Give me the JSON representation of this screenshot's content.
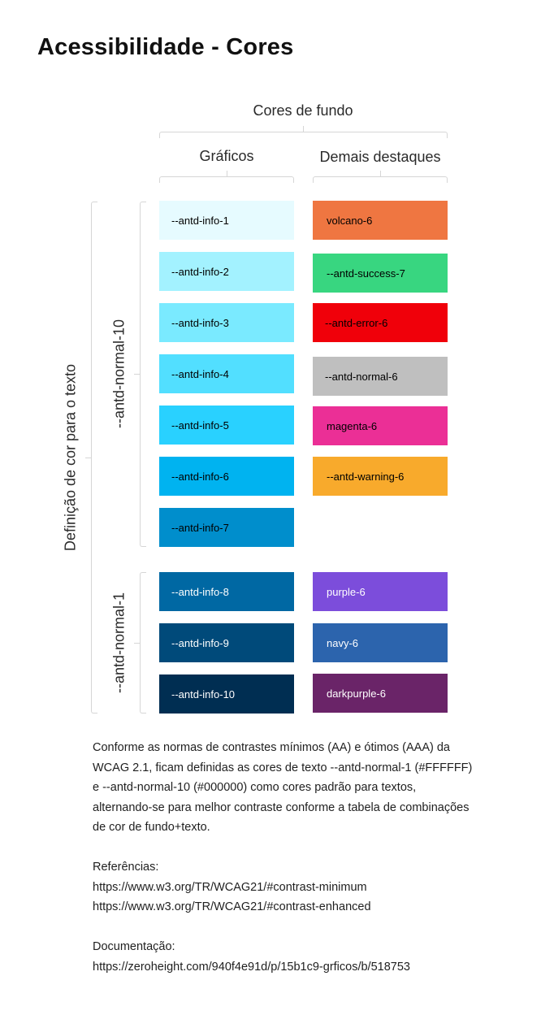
{
  "page_title": "Acessibilidade - Cores",
  "headers": {
    "background": "Cores de fundo",
    "charts": "Gráficos",
    "highlights": "Demais destaques",
    "text_color": "Definição de cor para o texto",
    "dark_text": "--antd-normal-10",
    "light_text": "--antd-normal-1"
  },
  "swatches_charts": [
    {
      "label": "--antd-info-1",
      "bg": "#e6fbff",
      "fg": "#000000"
    },
    {
      "label": "--antd-info-2",
      "bg": "#a3f2ff",
      "fg": "#000000"
    },
    {
      "label": "--antd-info-3",
      "bg": "#7aeaff",
      "fg": "#000000"
    },
    {
      "label": "--antd-info-4",
      "bg": "#52dfff",
      "fg": "#000000"
    },
    {
      "label": "--antd-info-5",
      "bg": "#29d1ff",
      "fg": "#000000"
    },
    {
      "label": "--antd-info-6",
      "bg": "#00b3f0",
      "fg": "#000000"
    },
    {
      "label": "--antd-info-7",
      "bg": "#008ecc",
      "fg": "#000000"
    },
    {
      "label": "--antd-info-8",
      "bg": "#0068a3",
      "fg": "#ffffff"
    },
    {
      "label": "--antd-info-9",
      "bg": "#004a7a",
      "fg": "#ffffff"
    },
    {
      "label": "--antd-info-10",
      "bg": "#002e52",
      "fg": "#ffffff"
    }
  ],
  "swatches_highlights": [
    {
      "label": "volcano-6",
      "bg": "#ef7641",
      "fg": "#000000"
    },
    {
      "label": "--antd-success-7",
      "bg": "#38d680",
      "fg": "#000000"
    },
    {
      "label": "--antd-error-6",
      "bg": "#f0000a",
      "fg": "#000000"
    },
    {
      "label": "--antd-normal-6",
      "bg": "#bfbfbf",
      "fg": "#000000"
    },
    {
      "label": "magenta-6",
      "bg": "#eb2f96",
      "fg": "#000000"
    },
    {
      "label": "--antd-warning-6",
      "bg": "#f8aa2c",
      "fg": "#000000"
    },
    {
      "label": "purple-6",
      "bg": "#7c4ddb",
      "fg": "#ffffff"
    },
    {
      "label": "navy-6",
      "bg": "#2c64ad",
      "fg": "#ffffff"
    },
    {
      "label": "darkpurple-6",
      "bg": "#6a2468",
      "fg": "#ffffff"
    }
  ],
  "notes": {
    "paragraph": "Conforme as normas de contrastes mínimos (AA) e ótimos (AAA) da WCAG 2.1, ficam definidas as cores de texto --antd-normal-1 (#FFFFFF) e --antd-normal-10 (#000000) como cores padrão para textos, alternando-se para melhor contraste conforme a tabela de combinações de cor de fundo+texto.",
    "references_label": "Referências:",
    "reference_1": "https://www.w3.org/TR/WCAG21/#contrast-minimum",
    "reference_2": "https://www.w3.org/TR/WCAG21/#contrast-enhanced",
    "documentation_label": "Documentação:",
    "documentation_link": "https://zeroheight.com/940f4e91d/p/15b1c9-grficos/b/518753"
  }
}
